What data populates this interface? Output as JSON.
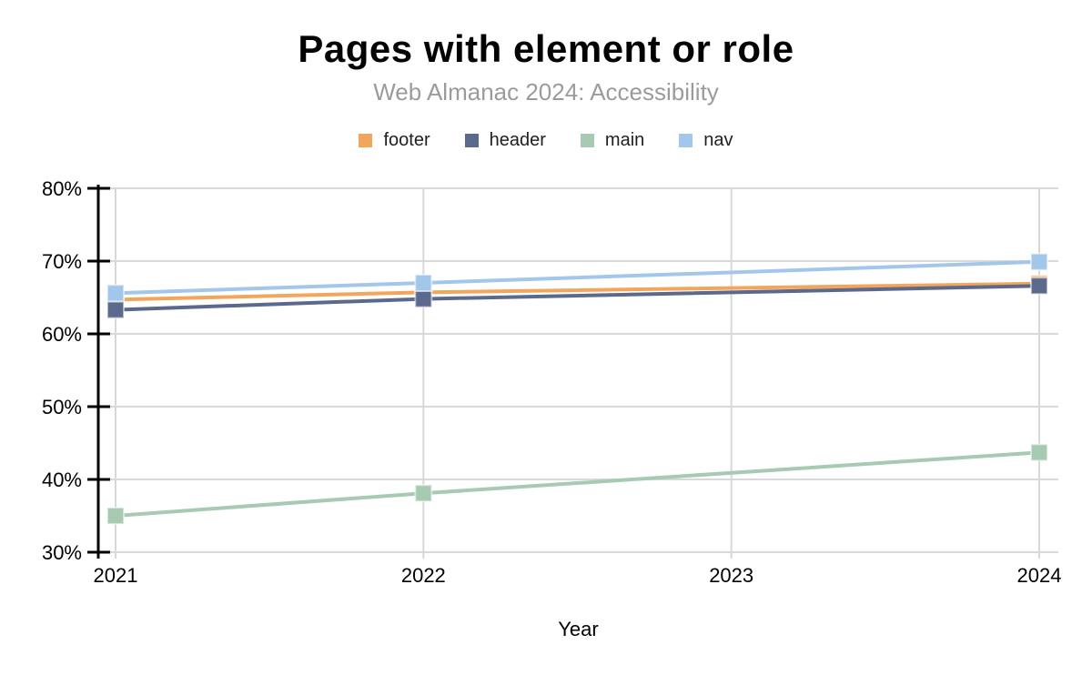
{
  "chart_data": {
    "type": "line",
    "title": "Pages with element or role",
    "subtitle": "Web Almanac 2024: Accessibility",
    "xlabel": "Year",
    "ylabel": "",
    "unit": "%",
    "x": [
      2021,
      2022,
      2024
    ],
    "x_axis_ticks": [
      "2021",
      "2022",
      "2023",
      "2024"
    ],
    "y_axis_ticks": [
      "30%",
      "40%",
      "50%",
      "60%",
      "70%",
      "80%"
    ],
    "xlim": [
      2021,
      2024
    ],
    "ylim": [
      30,
      80
    ],
    "grid": true,
    "legend_position": "top",
    "marker": "square",
    "series": [
      {
        "name": "footer",
        "color": "#F3A65B",
        "values": [
          64.7,
          65.7,
          66.9
        ]
      },
      {
        "name": "header",
        "color": "#5B6A8C",
        "values": [
          63.3,
          64.8,
          66.6
        ]
      },
      {
        "name": "main",
        "color": "#A7CBB2",
        "values": [
          35.0,
          38.1,
          43.7
        ]
      },
      {
        "name": "nav",
        "color": "#A3C7EB",
        "values": [
          65.6,
          67.0,
          69.9
        ]
      }
    ],
    "colors": {
      "grid": "#D8D8D8",
      "axis": "#000000",
      "tick_text": "#000000",
      "subtitle_text": "#9B9B9B"
    }
  }
}
